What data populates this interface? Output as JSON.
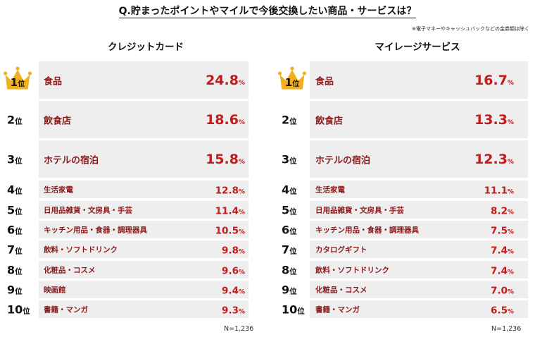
{
  "title": "Q.貯まったポイントやマイルで今後交換したい商品・サービスは？",
  "note": "※電子マネーやキャッシュバックなどの金券類は除く",
  "rank_suffix": "位",
  "colors": {
    "label": "#8b1a1a",
    "value": "#c31a1a",
    "bar": "#eeeeee",
    "crown": "#f2b01e"
  },
  "chart_data": [
    {
      "type": "table",
      "title": "クレジットカード",
      "n_label": "N=1,236",
      "unit": "%",
      "ranks": [
        1,
        2,
        3,
        4,
        5,
        6,
        7,
        8,
        9,
        10
      ],
      "categories": [
        "食品",
        "飲食店",
        "ホテルの宿泊",
        "生活家電",
        "日用品雑貨・文房具・手芸",
        "キッチン用品・食器・調理器具",
        "飲料・ソフトドリンク",
        "化粧品・コスメ",
        "映画館",
        "書籍・マンガ"
      ],
      "values": [
        24.8,
        18.6,
        15.8,
        12.8,
        11.4,
        10.5,
        9.8,
        9.6,
        9.4,
        9.3
      ],
      "value_text": [
        "24.8",
        "18.6",
        "15.8",
        "12.8",
        "11.4",
        "10.5",
        "9.8",
        "9.6",
        "9.4",
        "9.3"
      ]
    },
    {
      "type": "table",
      "title": "マイレージサービス",
      "n_label": "N=1,236",
      "unit": "%",
      "ranks": [
        1,
        2,
        3,
        4,
        5,
        6,
        7,
        8,
        9,
        10
      ],
      "categories": [
        "食品",
        "飲食店",
        "ホテルの宿泊",
        "生活家電",
        "日用品雑貨・文房具・手芸",
        "キッチン用品・食器・調理器具",
        "カタログギフト",
        "飲料・ソフトドリンク",
        "化粧品・コスメ",
        "書籍・マンガ"
      ],
      "values": [
        16.7,
        13.3,
        12.3,
        11.1,
        8.2,
        7.5,
        7.4,
        7.4,
        7.0,
        6.5
      ],
      "value_text": [
        "16.7",
        "13.3",
        "12.3",
        "11.1",
        "8.2",
        "7.5",
        "7.4",
        "7.4",
        "7.0",
        "6.5"
      ]
    }
  ]
}
